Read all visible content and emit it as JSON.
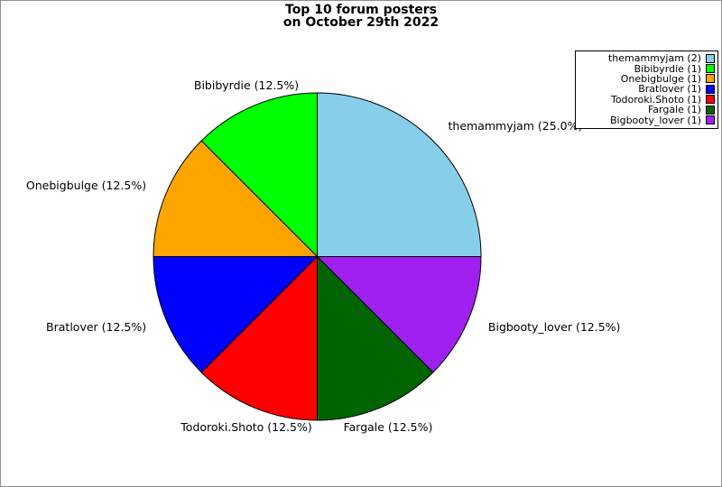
{
  "figure": {
    "title_line1": "Top 10 forum posters",
    "title_line2": "on October 29th 2022",
    "background_color": "#ffffff",
    "border_color": "#8f8f8f"
  },
  "chart_data": {
    "type": "pie",
    "title": "Top 10 forum posters on October 29th 2022",
    "start_angle_deg": 0,
    "direction": "counterclockwise",
    "legend_position": "upper right",
    "slice_edge_color": "#000000",
    "slices": [
      {
        "name": "themammyjam",
        "posts": 2,
        "percent": 25.0,
        "slice_label": "themammyjam (25.0%)",
        "legend_label": "themammyjam (2)",
        "color": "#87CEEB"
      },
      {
        "name": "Bibibyrdie",
        "posts": 1,
        "percent": 12.5,
        "slice_label": "Bibibyrdie (12.5%)",
        "legend_label": "Bibibyrdie (1)",
        "color": "#00FF00"
      },
      {
        "name": "Onebigbulge",
        "posts": 1,
        "percent": 12.5,
        "slice_label": "Onebigbulge (12.5%)",
        "legend_label": "Onebigbulge (1)",
        "color": "#FFA500"
      },
      {
        "name": "Bratlover",
        "posts": 1,
        "percent": 12.5,
        "slice_label": "Bratlover (12.5%)",
        "legend_label": "Bratlover (1)",
        "color": "#0000FF"
      },
      {
        "name": "Todoroki.Shoto",
        "posts": 1,
        "percent": 12.5,
        "slice_label": "Todoroki.Shoto (12.5%)",
        "legend_label": "Todoroki.Shoto (1)",
        "color": "#FF0000"
      },
      {
        "name": "Fargale",
        "posts": 1,
        "percent": 12.5,
        "slice_label": "Fargale (12.5%)",
        "legend_label": "Fargale (1)",
        "color": "#006400"
      },
      {
        "name": "Bigbooty_lover",
        "posts": 1,
        "percent": 12.5,
        "slice_label": "Bigbooty_lover (12.5%)",
        "legend_label": "Bigbooty_lover (1)",
        "color": "#A020F0"
      }
    ]
  }
}
